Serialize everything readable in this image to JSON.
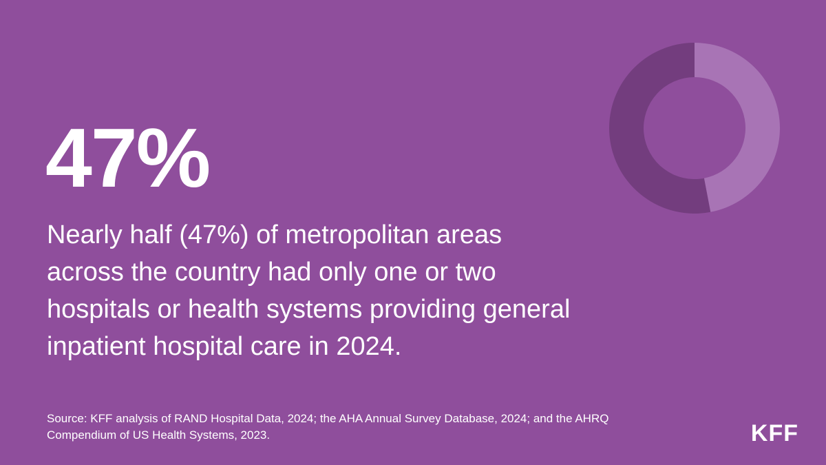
{
  "theme": {
    "background": "#8F4E9C",
    "accent_light": "#A874B5",
    "accent_dark": "#733D7E",
    "text": "#FFFFFF"
  },
  "stat": {
    "value": "47%"
  },
  "headline": "Nearly half (47%) of metropolitan areas across the country had only one or two hospitals or health systems providing general inpatient hospital care in 2024.",
  "source": "Source: KFF analysis of RAND Hospital Data, 2024; the AHA Annual Survey Database, 2024; and the AHRQ Compendium of US Health Systems, 2023.",
  "logo": "KFF",
  "chart_data": {
    "type": "pie",
    "donut": true,
    "categories": [
      "",
      ""
    ],
    "values": [
      47,
      53
    ],
    "colors": [
      "#A874B5",
      "#733D7E"
    ],
    "start": "top",
    "direction": "clockwise"
  }
}
